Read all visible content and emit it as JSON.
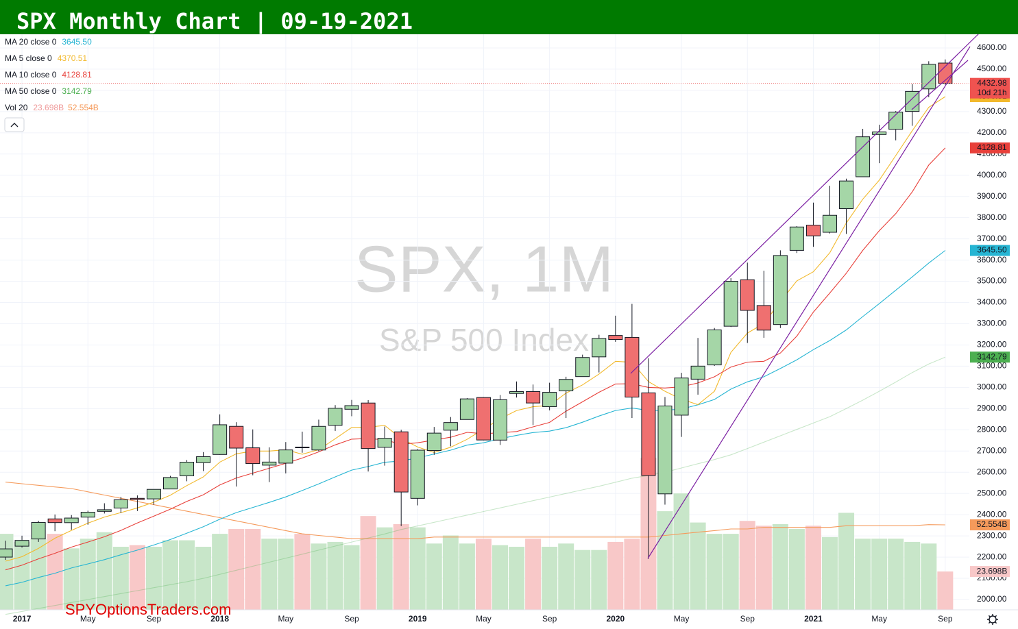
{
  "chart_data": {
    "type": "candlestick",
    "title": "SPX Monthly Chart | 09-19-2021",
    "watermark": "SPX, 1M",
    "watermark_subtitle": "S&P 500 Index",
    "footer": "SPYOptionsTraders.com",
    "categories": [
      null,
      "2017",
      null,
      null,
      null,
      "May",
      null,
      null,
      null,
      "Sep",
      null,
      null,
      null,
      "2018",
      null,
      null,
      null,
      "May",
      null,
      null,
      null,
      "Sep",
      null,
      null,
      null,
      "2019",
      null,
      null,
      null,
      "May",
      null,
      null,
      null,
      "Sep",
      null,
      null,
      null,
      "2020",
      null,
      null,
      null,
      "May",
      null,
      null,
      null,
      "Sep",
      null,
      null,
      null,
      "2021",
      null,
      null,
      null,
      "May",
      null,
      null,
      null,
      "Sep"
    ],
    "open": [
      2200.17,
      2251.57,
      2285.59,
      2380.13,
      2362.34,
      2388.5,
      2415.65,
      2431.39,
      2477.1,
      2474.42,
      2521.2,
      2583.21,
      2645.1,
      2683.73,
      2816.45,
      2715.22,
      2633.45,
      2642.96,
      2718.7,
      2704.95,
      2821.17,
      2896.96,
      2926.29,
      2717.58,
      2790.5,
      2476.96,
      2702.32,
      2798.22,
      2848.63,
      2952.33,
      2751.53,
      2971.41,
      2980.32,
      2909.01,
      2983.69,
      3050.72,
      3143.85,
      3244.67,
      3235.66,
      2974.28,
      2498.08,
      2869.09,
      3038.78,
      3105.92,
      3288.26,
      3507.44,
      3385.87,
      3296.2,
      3645.87,
      3764.61,
      3731.17,
      3842.51,
      3992.78,
      4191.98,
      4216.52,
      4300.73,
      4406.86,
      4528.8
    ],
    "high": [
      2277.53,
      2300.99,
      2371.54,
      2400.98,
      2398.16,
      2418.71,
      2453.82,
      2484.04,
      2490.87,
      2519.44,
      2582.98,
      2657.74,
      2694.97,
      2872.87,
      2835.96,
      2801.9,
      2717.49,
      2742.24,
      2791.47,
      2848.03,
      2916.5,
      2940.91,
      2939.86,
      2815.15,
      2800.18,
      2708.95,
      2813.49,
      2860.31,
      2949.52,
      2954.13,
      2964.15,
      3027.98,
      3013.59,
      3021.99,
      3050.1,
      3154.26,
      3247.93,
      3337.77,
      3393.52,
      3136.72,
      2954.86,
      3068.67,
      3233.13,
      3279.99,
      3514.77,
      3588.11,
      3549.85,
      3645.99,
      3760.2,
      3870.9,
      3950.43,
      3983.87,
      4218.78,
      4238.04,
      4302.43,
      4429.97,
      4537.36,
      4545.85
    ],
    "low": [
      2187.44,
      2245.13,
      2271.65,
      2322.25,
      2328.95,
      2352.72,
      2405.7,
      2407.7,
      2417.35,
      2446.55,
      2520.4,
      2557.45,
      2605.52,
      2682.36,
      2532.69,
      2585.89,
      2553.8,
      2594.62,
      2691.99,
      2698.95,
      2795.14,
      2864.12,
      2603.54,
      2631.09,
      2346.58,
      2443.96,
      2681.83,
      2722.27,
      2848.63,
      2750.52,
      2728.81,
      2952.22,
      2822.12,
      2891.85,
      2855.94,
      3050.72,
      3070.33,
      3214.64,
      2855.84,
      2191.86,
      2447.49,
      2766.64,
      2965.66,
      3101.17,
      3284.53,
      3209.45,
      3233.94,
      3279.74,
      3633.4,
      3662.71,
      3725.62,
      3723.34,
      3992.78,
      4056.88,
      4164.4,
      4233.13,
      4367.73,
      4427.01
    ],
    "close": [
      2238.83,
      2278.87,
      2363.64,
      2362.72,
      2384.2,
      2411.8,
      2423.41,
      2470.3,
      2471.65,
      2519.36,
      2575.26,
      2647.58,
      2673.61,
      2823.81,
      2713.83,
      2640.87,
      2648.05,
      2705.27,
      2718.37,
      2816.29,
      2901.52,
      2913.98,
      2711.74,
      2760.17,
      2506.85,
      2704.1,
      2784.49,
      2834.4,
      2945.83,
      2752.06,
      2941.76,
      2980.38,
      2926.46,
      2976.74,
      3037.56,
      3140.98,
      3230.78,
      3225.52,
      2954.22,
      2584.59,
      2912.43,
      3044.31,
      3100.29,
      3271.12,
      3500.31,
      3363.0,
      3269.96,
      3621.63,
      3756.07,
      3714.24,
      3811.15,
      3972.89,
      4181.17,
      4204.11,
      4297.5,
      4395.26,
      4522.68,
      4432.98
    ],
    "close_label": "4432.98",
    "countdown": "10d 21h",
    "up_color": "#a5d6a7",
    "down_color": "#ef7070",
    "series": [
      {
        "name": "MA 20 close 0",
        "color": "#26b5d3",
        "last_label": "3645.50",
        "values": [
          2065,
          2081,
          2104,
          2124,
          2149,
          2168,
          2188,
          2211,
          2233,
          2257,
          2283,
          2313,
          2343,
          2379,
          2410,
          2434,
          2458,
          2484,
          2514,
          2545,
          2578,
          2610,
          2627,
          2647,
          2653,
          2668,
          2686,
          2704,
          2728,
          2739,
          2758,
          2774,
          2787,
          2794,
          2810,
          2836,
          2865,
          2891,
          2903,
          2891,
          2892,
          2898,
          2918,
          2943,
          2992,
          3026,
          3050,
          3089,
          3130,
          3178,
          3221,
          3271,
          3334,
          3395,
          3458,
          3521,
          3586,
          3645.5
        ]
      },
      {
        "name": "MA 5 close 0",
        "color": "#f2b92c",
        "last_label": "4370.51",
        "values": [
          2181,
          2202,
          2241,
          2289,
          2326,
          2360,
          2389,
          2410,
          2432,
          2459,
          2492,
          2537,
          2578,
          2648,
          2687,
          2700,
          2700,
          2706,
          2685,
          2706,
          2758,
          2811,
          2812,
          2821,
          2759,
          2719,
          2693,
          2718,
          2755,
          2804,
          2852,
          2891,
          2909,
          2915,
          2973,
          3012,
          3063,
          3123,
          3118,
          3027,
          2982,
          2944,
          2919,
          2982,
          3165,
          3256,
          3301,
          3405,
          3502,
          3545,
          3635,
          3775,
          3887,
          3977,
          4093,
          4210,
          4320,
          4370.51
        ]
      },
      {
        "name": "MA 10 close 0",
        "color": "#e8403a",
        "last_label": "4128.81",
        "values": [
          2140,
          2162,
          2192,
          2218,
          2247,
          2271,
          2296,
          2326,
          2361,
          2393,
          2426,
          2463,
          2494,
          2540,
          2573,
          2596,
          2619,
          2642,
          2667,
          2696,
          2729,
          2756,
          2759,
          2753,
          2732,
          2739,
          2752,
          2765,
          2788,
          2782,
          2786,
          2792,
          2814,
          2835,
          2888,
          2932,
          2977,
          3016,
          3017,
          3000,
          2997,
          3003,
          3021,
          3050,
          3096,
          3119,
          3123,
          3162,
          3242,
          3355,
          3445,
          3538,
          3646,
          3739,
          3819,
          3922,
          4048,
          4128.81
        ]
      },
      {
        "name": "MA 50 close 0",
        "color": "#4caf50",
        "last_label": "3142.79",
        "opacity": 0.3,
        "values": [
          1930,
          1944,
          1958,
          1972,
          1986,
          2000,
          2014,
          2028,
          2042,
          2056,
          2070,
          2084,
          2100,
          2119,
          2138,
          2157,
          2176,
          2195,
          2214,
          2233,
          2252,
          2271,
          2290,
          2309,
          2330,
          2347,
          2364,
          2381,
          2398,
          2415,
          2432,
          2449,
          2466,
          2483,
          2500,
          2517,
          2534,
          2553,
          2572,
          2585,
          2600,
          2620,
          2640,
          2660,
          2682,
          2712,
          2742,
          2772,
          2802,
          2832,
          2862,
          2900,
          2940,
          2982,
          3025,
          3070,
          3110,
          3142.79
        ]
      }
    ],
    "volume": {
      "name": "Vol 20",
      "values": [
        47,
        42,
        44,
        47,
        38,
        44,
        48,
        39,
        40,
        39,
        43,
        43,
        39,
        47,
        50,
        50,
        44,
        44,
        47,
        41,
        42,
        40,
        58,
        51,
        53,
        51,
        41,
        46,
        41,
        44,
        40,
        39,
        44,
        39,
        41,
        37,
        37,
        42,
        44,
        94,
        61,
        72,
        54,
        47,
        47,
        55,
        52,
        53,
        50,
        52,
        45,
        60,
        44,
        44,
        44,
        42,
        41,
        23.698
      ],
      "last_label": "23.698B",
      "ma_values": [
        79,
        78,
        77,
        76,
        75,
        73,
        71,
        69,
        67,
        65,
        63,
        61,
        59,
        57,
        55,
        53,
        51,
        49,
        47,
        46,
        45,
        44,
        44,
        44,
        44,
        44,
        45,
        45,
        45,
        45,
        45,
        45,
        45,
        45,
        45,
        45,
        45,
        45,
        45,
        45,
        46,
        47,
        48,
        49,
        50,
        50,
        51,
        51,
        51,
        51,
        51,
        52,
        52,
        52,
        52,
        52,
        52.7,
        52.554
      ],
      "ma_label": "52.554B",
      "ma_color": "#f59a5b",
      "up_color": "#c8e6c9",
      "down_color": "#f8c8c8",
      "lim": [
        0,
        356
      ]
    },
    "ylim": [
      1951.6,
      4664.5
    ],
    "yticks": [
      {
        "value": 2000,
        "label": "2000.00"
      },
      {
        "value": 2100,
        "label": "2100.00"
      },
      {
        "value": 2200,
        "label": "2200.00"
      },
      {
        "value": 2300,
        "label": "2300.00"
      },
      {
        "value": 2400,
        "label": "2400.00"
      },
      {
        "value": 2500,
        "label": "2500.00"
      },
      {
        "value": 2600,
        "label": "2600.00"
      },
      {
        "value": 2700,
        "label": "2700.00"
      },
      {
        "value": 2800,
        "label": "2800.00"
      },
      {
        "value": 2900,
        "label": "2900.00"
      },
      {
        "value": 3000,
        "label": "3000.00"
      },
      {
        "value": 3100,
        "label": "3100.00"
      },
      {
        "value": 3200,
        "label": "3200.00"
      },
      {
        "value": 3300,
        "label": "3300.00"
      },
      {
        "value": 3400,
        "label": "3400.00"
      },
      {
        "value": 3500,
        "label": "3500.00"
      },
      {
        "value": 3600,
        "label": "3600.00"
      },
      {
        "value": 3700,
        "label": "3700.00"
      },
      {
        "value": 3800,
        "label": "3800.00"
      },
      {
        "value": 3900,
        "label": "3900.00"
      },
      {
        "value": 4000,
        "label": "4000.00"
      },
      {
        "value": 4100,
        "label": "4100.00"
      },
      {
        "value": 4200,
        "label": "4200.00"
      },
      {
        "value": 4300,
        "label": "4300.00"
      },
      {
        "value": 4400,
        "label": "4400.00"
      },
      {
        "value": 4500,
        "label": "4500.00"
      },
      {
        "value": 4600,
        "label": "4600.00"
      }
    ],
    "grid": true
  }
}
